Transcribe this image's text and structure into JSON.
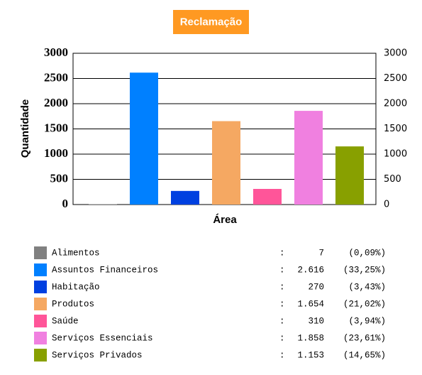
{
  "chart_data": {
    "type": "bar",
    "title": "Reclamação",
    "y_label": "Quantidade",
    "x_label": "Área",
    "categories": [
      "Alimentos",
      "Assuntos Financeiros",
      "Habitação",
      "Produtos",
      "Saúde",
      "Serviços Essenciais",
      "Serviços Privados"
    ],
    "values": [
      7,
      2616,
      270,
      1654,
      310,
      1858,
      1153
    ],
    "value_labels": [
      "7",
      "2.616",
      "270",
      "1.654",
      "310",
      "1.858",
      "1.153"
    ],
    "percentages": [
      0.09,
      33.25,
      3.43,
      21.02,
      3.94,
      23.61,
      14.65
    ],
    "percentage_labels": [
      "(0,09%)",
      "(33,25%)",
      "(3,43%)",
      "(21,02%)",
      "(3,94%)",
      "(23,61%)",
      "(14,65%)"
    ],
    "colors": [
      "#808080",
      "#0080ff",
      "#0040e0",
      "#f5a862",
      "#ff5599",
      "#f080e0",
      "#88a000"
    ],
    "legend_separator": ":",
    "ylim": [
      0,
      3000
    ],
    "yticks": [
      0,
      500,
      1000,
      1500,
      2000,
      2500,
      3000
    ],
    "y2lim": [
      0,
      3000
    ],
    "y2ticks": [
      0,
      500,
      1000,
      1500,
      2000,
      2500,
      3000
    ],
    "grid": true
  }
}
